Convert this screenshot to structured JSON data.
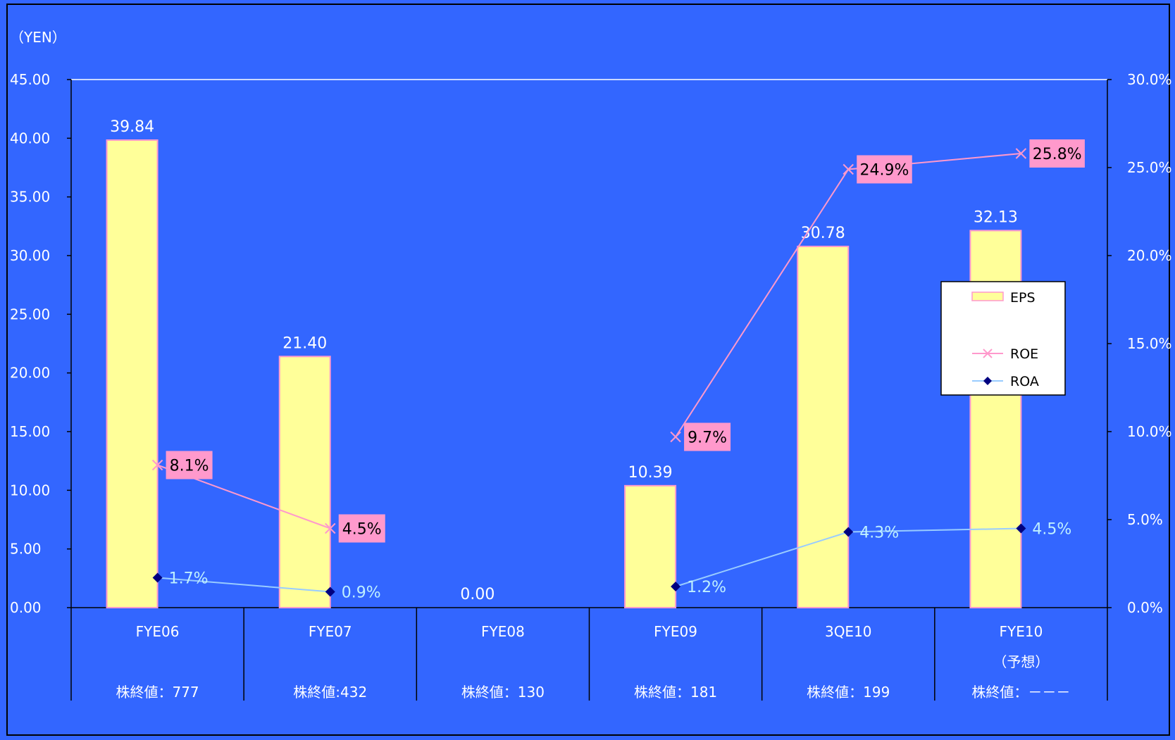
{
  "chart_data": {
    "type": "bar",
    "ylabel": "（YEN）",
    "categories": [
      "FYE06",
      "FYE07",
      "FYE08",
      "FYE09",
      "3QE10",
      "FYE10"
    ],
    "category_notes": [
      "",
      "",
      "",
      "",
      "",
      "（予想）"
    ],
    "closing_prices": [
      "株終値：777",
      "株終値:432",
      "株終値：130",
      "株終値：181",
      "株終値：199",
      "株終値：－－－"
    ],
    "y_left": {
      "min": 0,
      "max": 45,
      "ticks": [
        "0.00",
        "5.00",
        "10.00",
        "15.00",
        "20.00",
        "25.00",
        "30.00",
        "35.00",
        "40.00",
        "45.00"
      ]
    },
    "y_right": {
      "min": 0,
      "max": 30,
      "ticks": [
        "0.0%",
        "5.0%",
        "10.0%",
        "15.0%",
        "20.0%",
        "25.0%",
        "30.0%"
      ]
    },
    "series": [
      {
        "name": "EPS",
        "type": "bar",
        "axis": "left",
        "values": [
          39.84,
          21.4,
          0.0,
          10.39,
          30.78,
          32.13
        ],
        "labels": [
          "39.84",
          "21.40",
          "0.00",
          "10.39",
          "30.78",
          "32.13"
        ]
      },
      {
        "name": "ROE",
        "type": "line",
        "axis": "right",
        "values": [
          8.1,
          4.5,
          null,
          9.7,
          24.9,
          25.8
        ],
        "labels": [
          "8.1%",
          "4.5%",
          "",
          "9.7%",
          "24.9%",
          "25.8%"
        ]
      },
      {
        "name": "ROA",
        "type": "line",
        "axis": "right",
        "values": [
          1.7,
          0.9,
          null,
          1.2,
          4.3,
          4.5
        ],
        "labels": [
          "1.7%",
          "0.9%",
          "",
          "1.2%",
          "4.3%",
          "4.5%"
        ]
      }
    ],
    "legend": [
      "EPS",
      "ROE",
      "ROA"
    ],
    "legend_position": "right",
    "grid": false
  },
  "colors": {
    "background": "#3366ff",
    "bar_fill": "#ffff99",
    "bar_border": "#ff99cc",
    "roe_line": "#ff99cc",
    "roe_label_bg": "#ff99cc",
    "roa_line": "#99ccff",
    "roa_marker": "#000080"
  }
}
